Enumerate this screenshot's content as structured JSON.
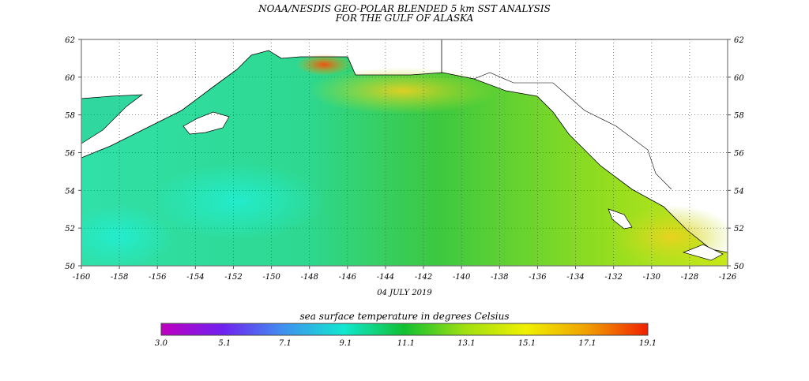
{
  "title_line1": "NOAA/NESDIS GEO-POLAR BLENDED 5 km SST ANALYSIS",
  "title_line2": "FOR THE GULF OF ALASKA",
  "date": "04 JULY 2019",
  "map": {
    "lon_range": [
      -160,
      -126
    ],
    "lat_range": [
      50,
      62
    ],
    "lon_ticks": [
      "-160",
      "-158",
      "-156",
      "-154",
      "-152",
      "-150",
      "-148",
      "-146",
      "-144",
      "-142",
      "-140",
      "-138",
      "-136",
      "-134",
      "-132",
      "-130",
      "-128",
      "-126"
    ],
    "lat_ticks": [
      "50",
      "52",
      "54",
      "56",
      "58",
      "60",
      "62"
    ],
    "grid": true,
    "land_color": "#ffffff"
  },
  "colorbar": {
    "label": "sea surface temperature in degrees Celsius",
    "tick_labels": [
      "3.0",
      "5.1",
      "7.1",
      "9.1",
      "11.1",
      "13.1",
      "15.1",
      "17.1",
      "19.1"
    ],
    "range": [
      3.0,
      19.1
    ],
    "colors": [
      "#c000c0",
      "#7020f0",
      "#4090f0",
      "#10e8d0",
      "#10c030",
      "#a0e010",
      "#f0f000",
      "#f0a000",
      "#f02000"
    ]
  }
}
